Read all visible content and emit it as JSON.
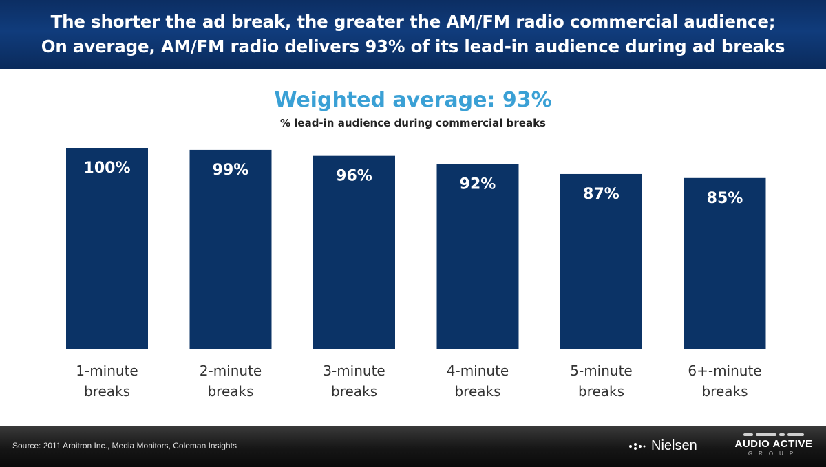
{
  "header": {
    "line1": "The shorter the ad break, the greater the AM/FM radio commercial audience;",
    "line2": "On average, AM/FM radio delivers 93% of its lead-in audience during ad breaks"
  },
  "subtitle": "Weighted average: 93%",
  "caption": "% lead-in audience during commercial breaks",
  "chart_data": {
    "type": "bar",
    "categories": [
      [
        "1-minute",
        "breaks"
      ],
      [
        "2-minute",
        "breaks"
      ],
      [
        "3-minute",
        "breaks"
      ],
      [
        "4-minute",
        "breaks"
      ],
      [
        "5-minute",
        "breaks"
      ],
      [
        "6+-minute",
        "breaks"
      ]
    ],
    "values": [
      100,
      99,
      96,
      92,
      87,
      85
    ],
    "data_labels": [
      "100%",
      "99%",
      "96%",
      "92%",
      "87%",
      "85%"
    ],
    "unit": "%",
    "ylim": [
      0,
      100
    ],
    "grid": false,
    "bar_color": "#0b3366"
  },
  "footer": {
    "source": "Source: 2011 Arbitron Inc., Media Monitors, Coleman Insights",
    "nielsen": "Nielsen",
    "audio_active": "AUDIO ACTIVE",
    "group": "GROUP"
  }
}
